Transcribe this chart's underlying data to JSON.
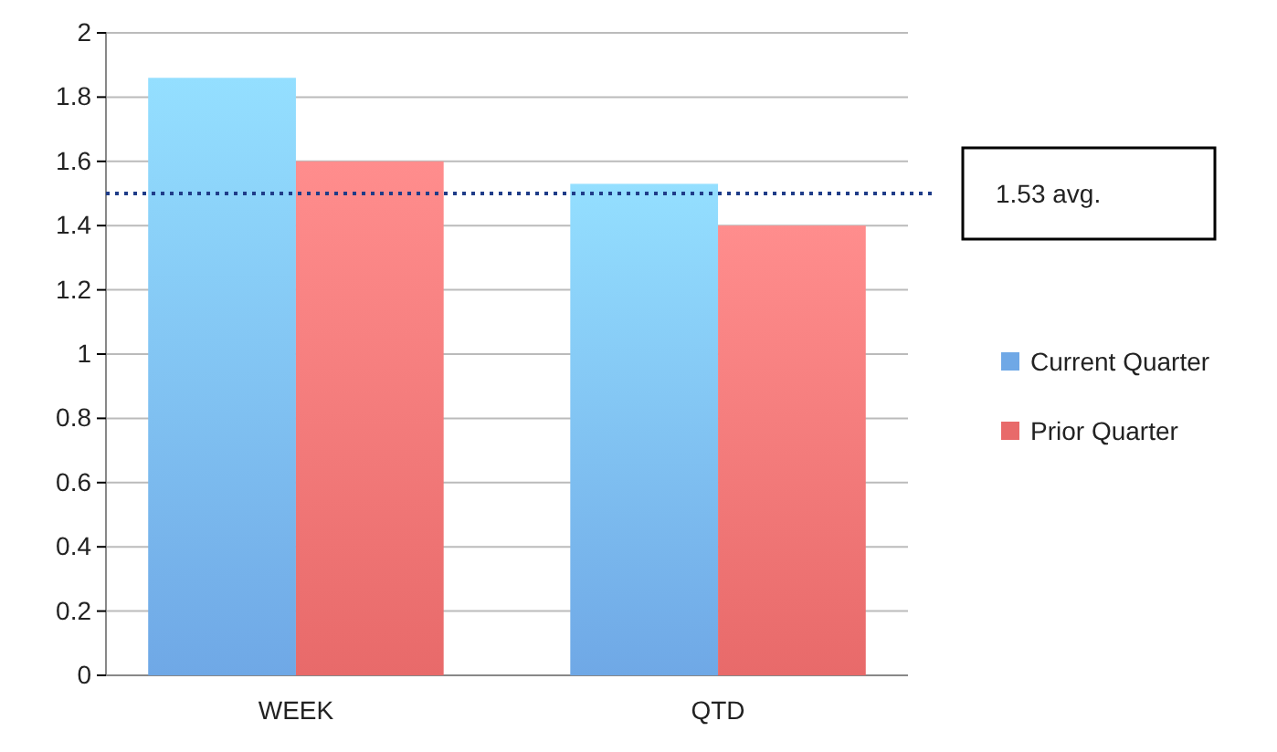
{
  "chart_data": {
    "type": "bar",
    "categories": [
      "WEEK",
      "QTD"
    ],
    "series": [
      {
        "name": "Current Quarter",
        "color": "#6fa8e6",
        "values": [
          1.86,
          1.53
        ]
      },
      {
        "name": "Prior Quarter",
        "color": "#e86a6a",
        "values": [
          1.6,
          1.4
        ]
      }
    ],
    "ylim": [
      0,
      2
    ],
    "yticks": [
      0,
      0.2,
      0.4,
      0.6,
      0.8,
      1,
      1.2,
      1.4,
      1.6,
      1.8,
      2
    ],
    "grid": "y",
    "legend": "right",
    "ref_lines": [
      {
        "axis": "y",
        "value": 1.5,
        "label": "1.53 avg.",
        "color": "#1f3c88",
        "line_style": "dotted"
      }
    ]
  }
}
